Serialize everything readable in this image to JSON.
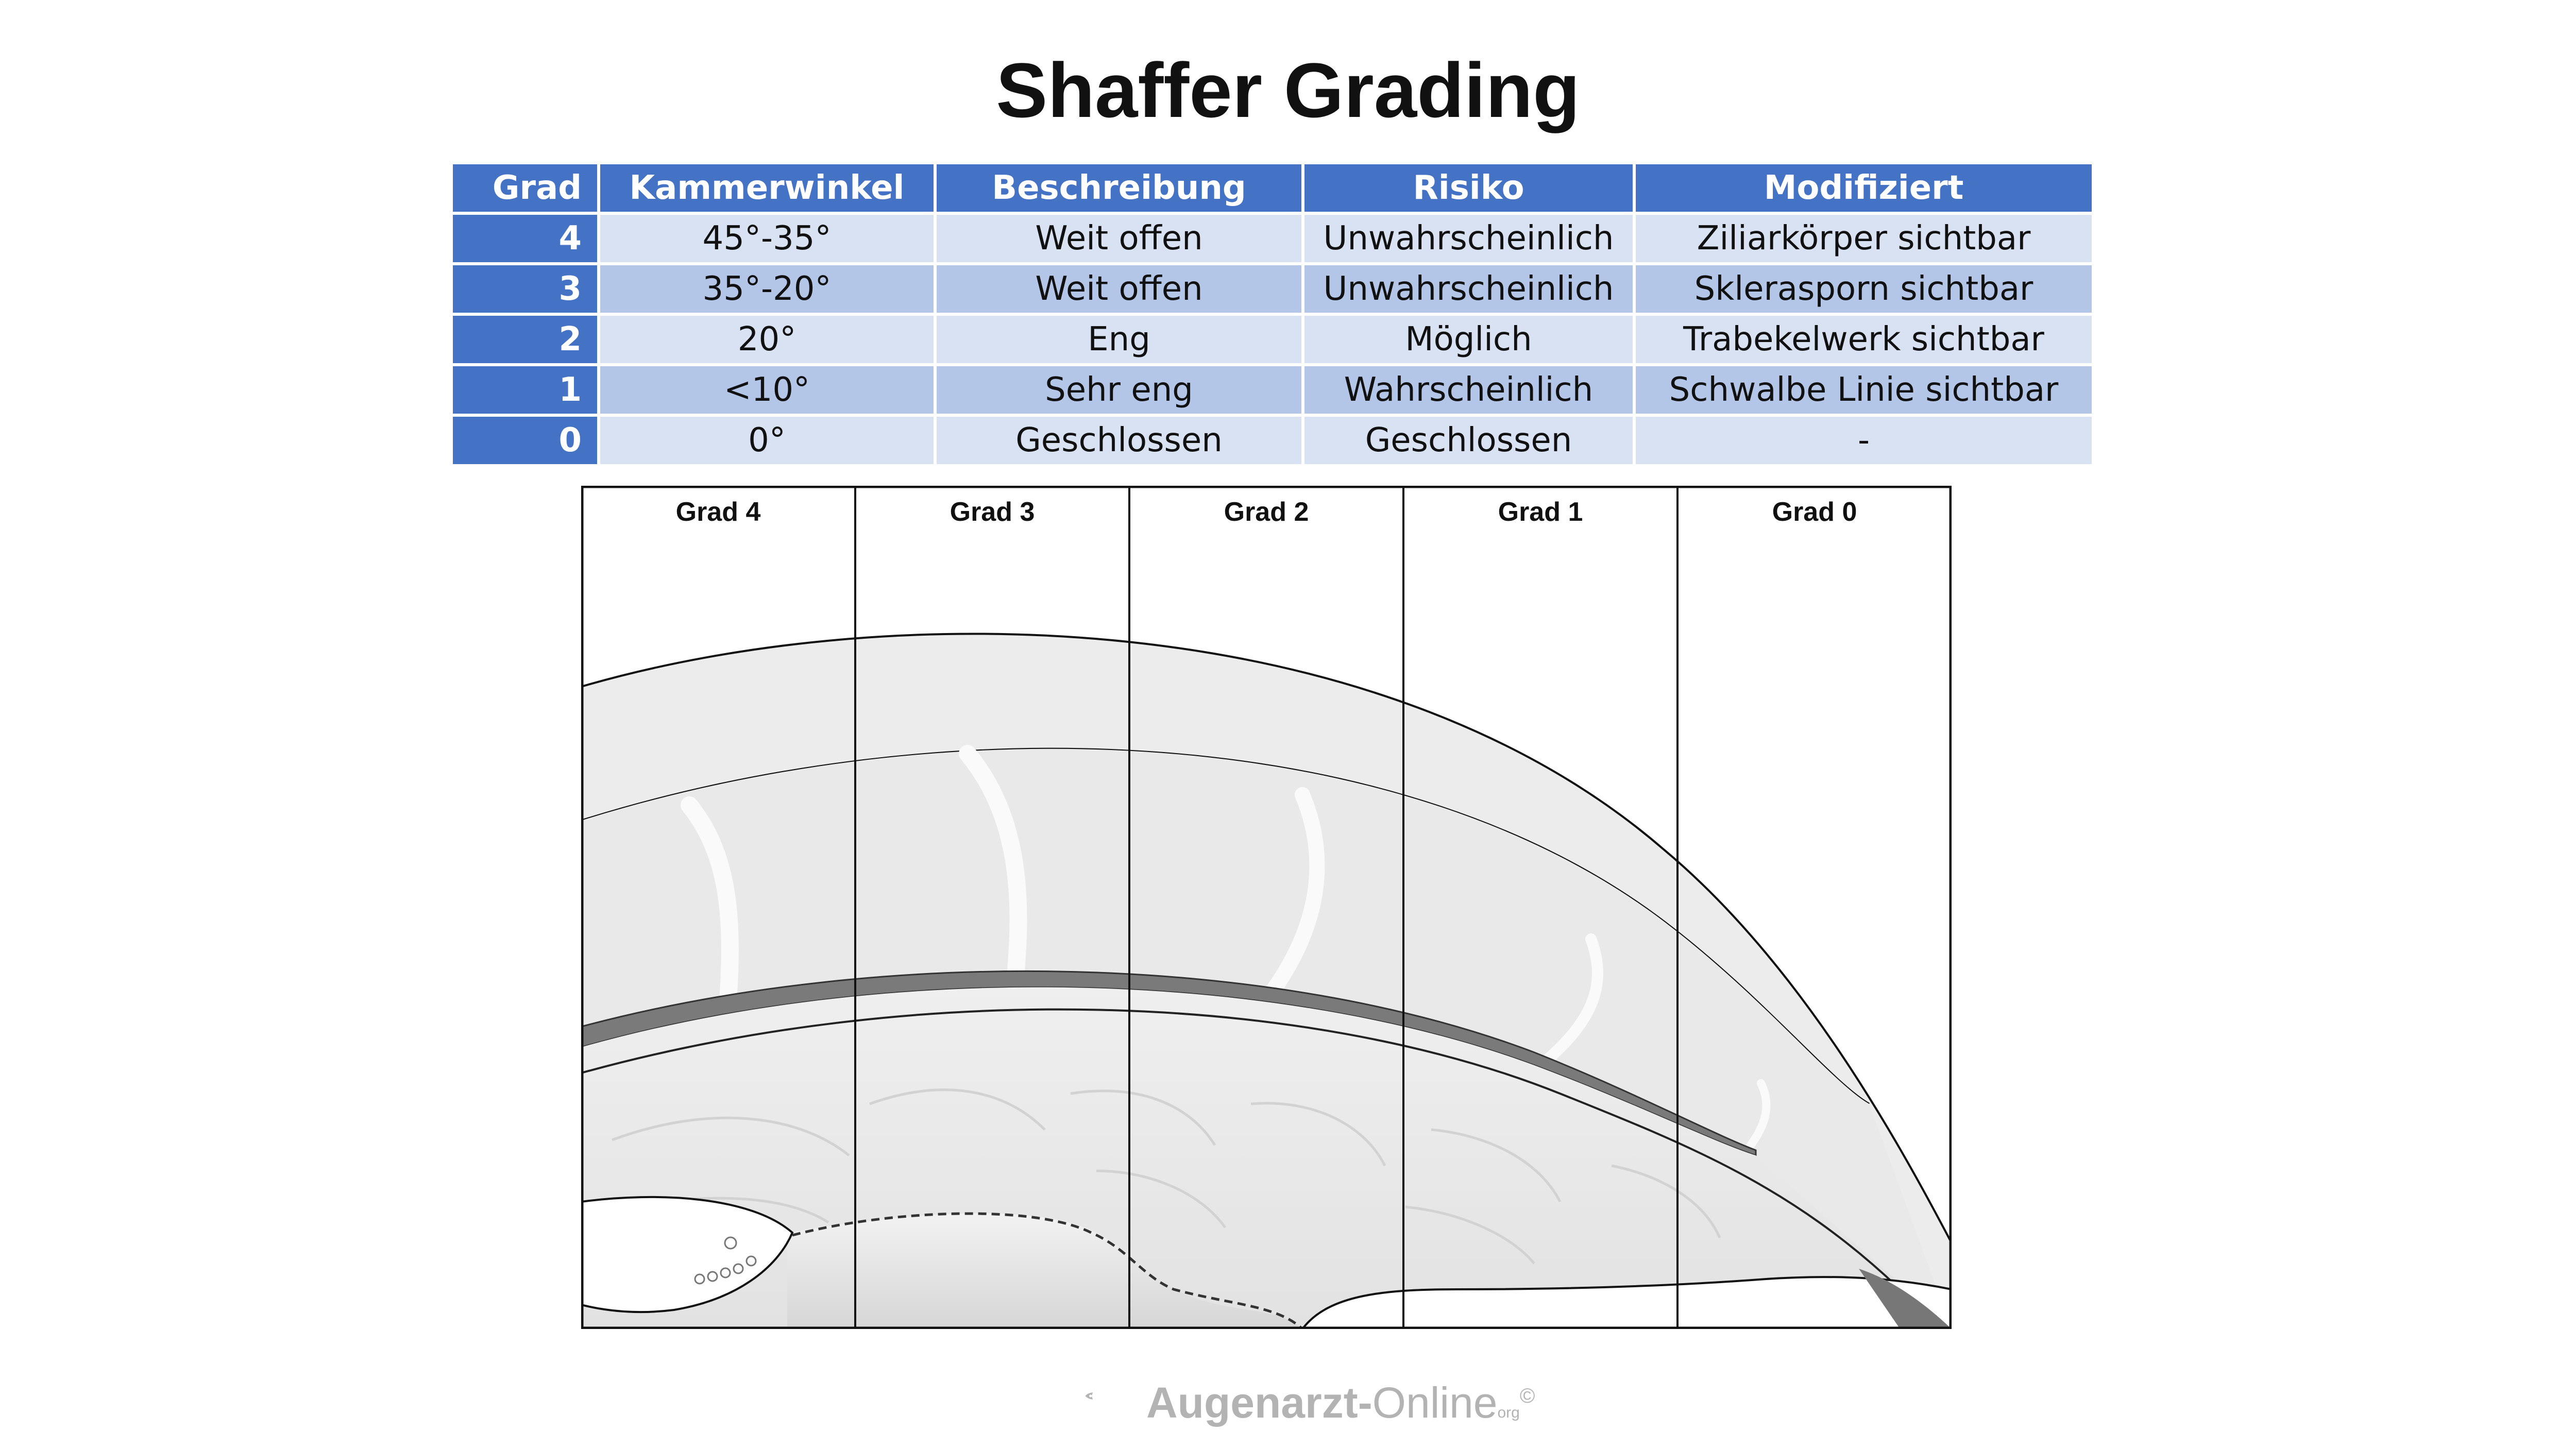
{
  "title": "Shaffer Grading",
  "table": {
    "headers": [
      "Grad",
      "Kammerwinkel",
      "Beschreibung",
      "Risiko",
      "Modifiziert"
    ],
    "rows": [
      [
        "4",
        "45°-35°",
        "Weit offen",
        "Unwahrscheinlich",
        "Ziliarkörper sichtbar"
      ],
      [
        "3",
        "35°-20°",
        "Weit offen",
        "Unwahrscheinlich",
        "Sklerasporn sichtbar"
      ],
      [
        "2",
        "20°",
        "Eng",
        "Möglich",
        "Trabekelwerk sichtbar"
      ],
      [
        "1",
        "<10°",
        "Sehr eng",
        "Wahrscheinlich",
        "Schwalbe Linie sichtbar"
      ],
      [
        "0",
        "0°",
        "Geschlossen",
        "Geschlossen",
        "-"
      ]
    ]
  },
  "illustration": {
    "panel_labels": [
      "Grad 4",
      "Grad 3",
      "Grad 2",
      "Grad 1",
      "Grad 0"
    ]
  },
  "footer": {
    "brand_bold": "Augenarzt-",
    "brand_light": "Online",
    "brand_suffix": "org",
    "brand_mark": "©"
  },
  "colors": {
    "header_blue": "#4472c4",
    "row_light": "#d9e2f3",
    "row_dark": "#b4c6e7",
    "logo_gray": "#b3b3b3"
  }
}
